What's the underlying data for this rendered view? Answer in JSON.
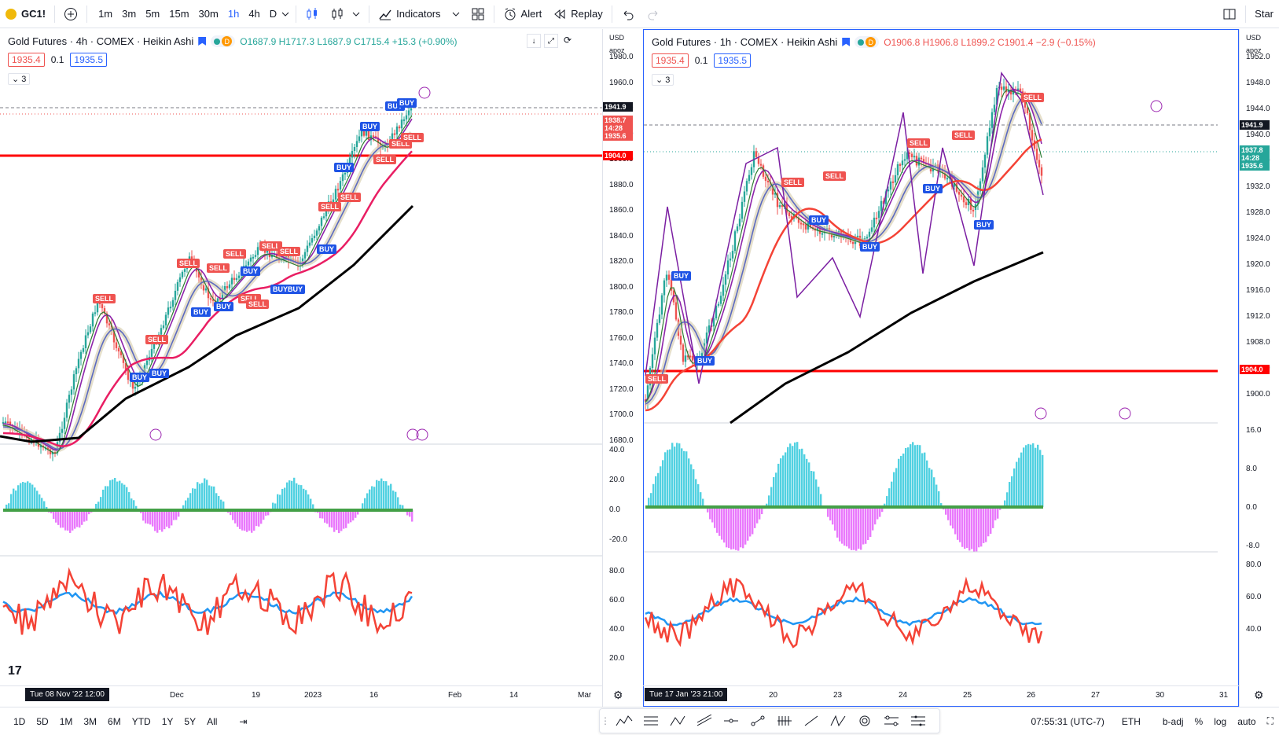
{
  "topbar": {
    "symbol": "GC1!",
    "timeframes": [
      "1m",
      "3m",
      "5m",
      "15m",
      "30m",
      "1h",
      "4h",
      "D"
    ],
    "active_timeframe": "1h",
    "indicators_label": "Indicators",
    "alert_label": "Alert",
    "replay_label": "Replay",
    "right_label": "Star"
  },
  "left_chart": {
    "title": "Gold Futures · 4h · COMEX · Heikin Ashi",
    "ohlc": "O1687.9 H1717.3 L1687.9 C1715.4 +15.3 (+0.90%)",
    "sell_price": "1935.4",
    "spread": "0.1",
    "buy_price": "1935.5",
    "collapse_count": "3",
    "currency": "USD",
    "scale_label": "apoz",
    "price_labels": [
      "1980.0",
      "1960.0",
      "1940.0",
      "1920.0",
      "1900.0",
      "1880.0",
      "1860.0",
      "1840.0",
      "1820.0",
      "1800.0",
      "1780.0",
      "1760.0",
      "1740.0",
      "1720.0",
      "1700.0",
      "1680.0"
    ],
    "tags": [
      {
        "text": "1941.9",
        "color": "#131722"
      },
      {
        "text": "1938.7\n14:28\n1935.6",
        "color": "#ef5350"
      },
      {
        "text": "1904.0",
        "color": "#ff0000"
      }
    ],
    "osc1_labels": [
      "40.0",
      "20.0",
      "0.0",
      "-20.0"
    ],
    "osc2_labels": [
      "80.0",
      "60.0",
      "40.0",
      "20.0"
    ],
    "time_labels": [
      "Dec",
      "19",
      "2023",
      "16",
      "Feb",
      "14",
      "Mar"
    ],
    "time_cursor": "Tue 08 Nov '22   12:00",
    "signals": [
      {
        "t": "SELL",
        "type": "s"
      },
      {
        "t": "BUY",
        "type": "b"
      },
      {
        "t": "BUY",
        "type": "b"
      },
      {
        "t": "SELL",
        "type": "s"
      },
      {
        "t": "SELL",
        "type": "s"
      },
      {
        "t": "BUY",
        "type": "b"
      },
      {
        "t": "SELL",
        "type": "s"
      },
      {
        "t": "BUY",
        "type": "b"
      },
      {
        "t": "SELL",
        "type": "s"
      },
      {
        "t": "SELL",
        "type": "s"
      },
      {
        "t": "BUY",
        "type": "b"
      },
      {
        "t": "SELL",
        "type": "s"
      },
      {
        "t": "SELL",
        "type": "s"
      },
      {
        "t": "BUYBUY",
        "type": "b"
      },
      {
        "t": "SELL",
        "type": "s"
      },
      {
        "t": "BUY",
        "type": "b"
      },
      {
        "t": "SELL",
        "type": "s"
      },
      {
        "t": "BUY",
        "type": "b"
      },
      {
        "t": "SELL",
        "type": "s"
      },
      {
        "t": "BUY",
        "type": "b"
      },
      {
        "t": "SELL",
        "type": "s"
      },
      {
        "t": "BUY",
        "type": "b"
      },
      {
        "t": "SELL",
        "type": "s"
      },
      {
        "t": "BUY",
        "type": "b"
      },
      {
        "t": "SELL",
        "type": "s"
      }
    ]
  },
  "right_chart": {
    "title": "Gold Futures · 1h · COMEX · Heikin Ashi",
    "ohlc": "O1906.8 H1906.8 L1899.2 C1901.4 −2.9 (−0.15%)",
    "sell_price": "1935.4",
    "spread": "0.1",
    "buy_price": "1935.5",
    "collapse_count": "3",
    "currency": "USD",
    "scale_label": "apoz",
    "price_labels": [
      "1952.0",
      "1948.0",
      "1944.0",
      "1940.0",
      "1936.0",
      "1932.0",
      "1928.0",
      "1924.0",
      "1920.0",
      "1916.0",
      "1912.0",
      "1908.0",
      "1904.0",
      "1900.0"
    ],
    "tags": [
      {
        "text": "1941.9",
        "color": "#131722"
      },
      {
        "text": "1937.8\n14:28\n1935.6",
        "color": "#26a69a"
      },
      {
        "text": "1904.0",
        "color": "#ff0000"
      }
    ],
    "osc1_labels": [
      "16.0",
      "8.0",
      "0.0",
      "-8.0"
    ],
    "osc2_labels": [
      "80.0",
      "60.0",
      "40.0"
    ],
    "time_labels": [
      "20",
      "23",
      "24",
      "25",
      "26",
      "27",
      "30",
      "31"
    ],
    "time_cursor": "Tue 17 Jan '23   21:00",
    "signals": [
      {
        "t": "SELL",
        "type": "s"
      },
      {
        "t": "BUY",
        "type": "b"
      },
      {
        "t": "BUY",
        "type": "b"
      },
      {
        "t": "SELL",
        "type": "s"
      },
      {
        "t": "SELL",
        "type": "s"
      },
      {
        "t": "BUY",
        "type": "b"
      },
      {
        "t": "BUY",
        "type": "b"
      },
      {
        "t": "SELL",
        "type": "s"
      },
      {
        "t": "BUY",
        "type": "b"
      },
      {
        "t": "SELL",
        "type": "s"
      },
      {
        "t": "BUY",
        "type": "b"
      },
      {
        "t": "SELL",
        "type": "s"
      }
    ]
  },
  "bottombar": {
    "ranges": [
      "1D",
      "5D",
      "1M",
      "3M",
      "6M",
      "YTD",
      "1Y",
      "5Y",
      "All"
    ],
    "clock": "07:55:31 (UTC-7)",
    "session": "ETH",
    "adj": "b-adj",
    "percent": "%",
    "log": "log",
    "auto": "auto"
  }
}
